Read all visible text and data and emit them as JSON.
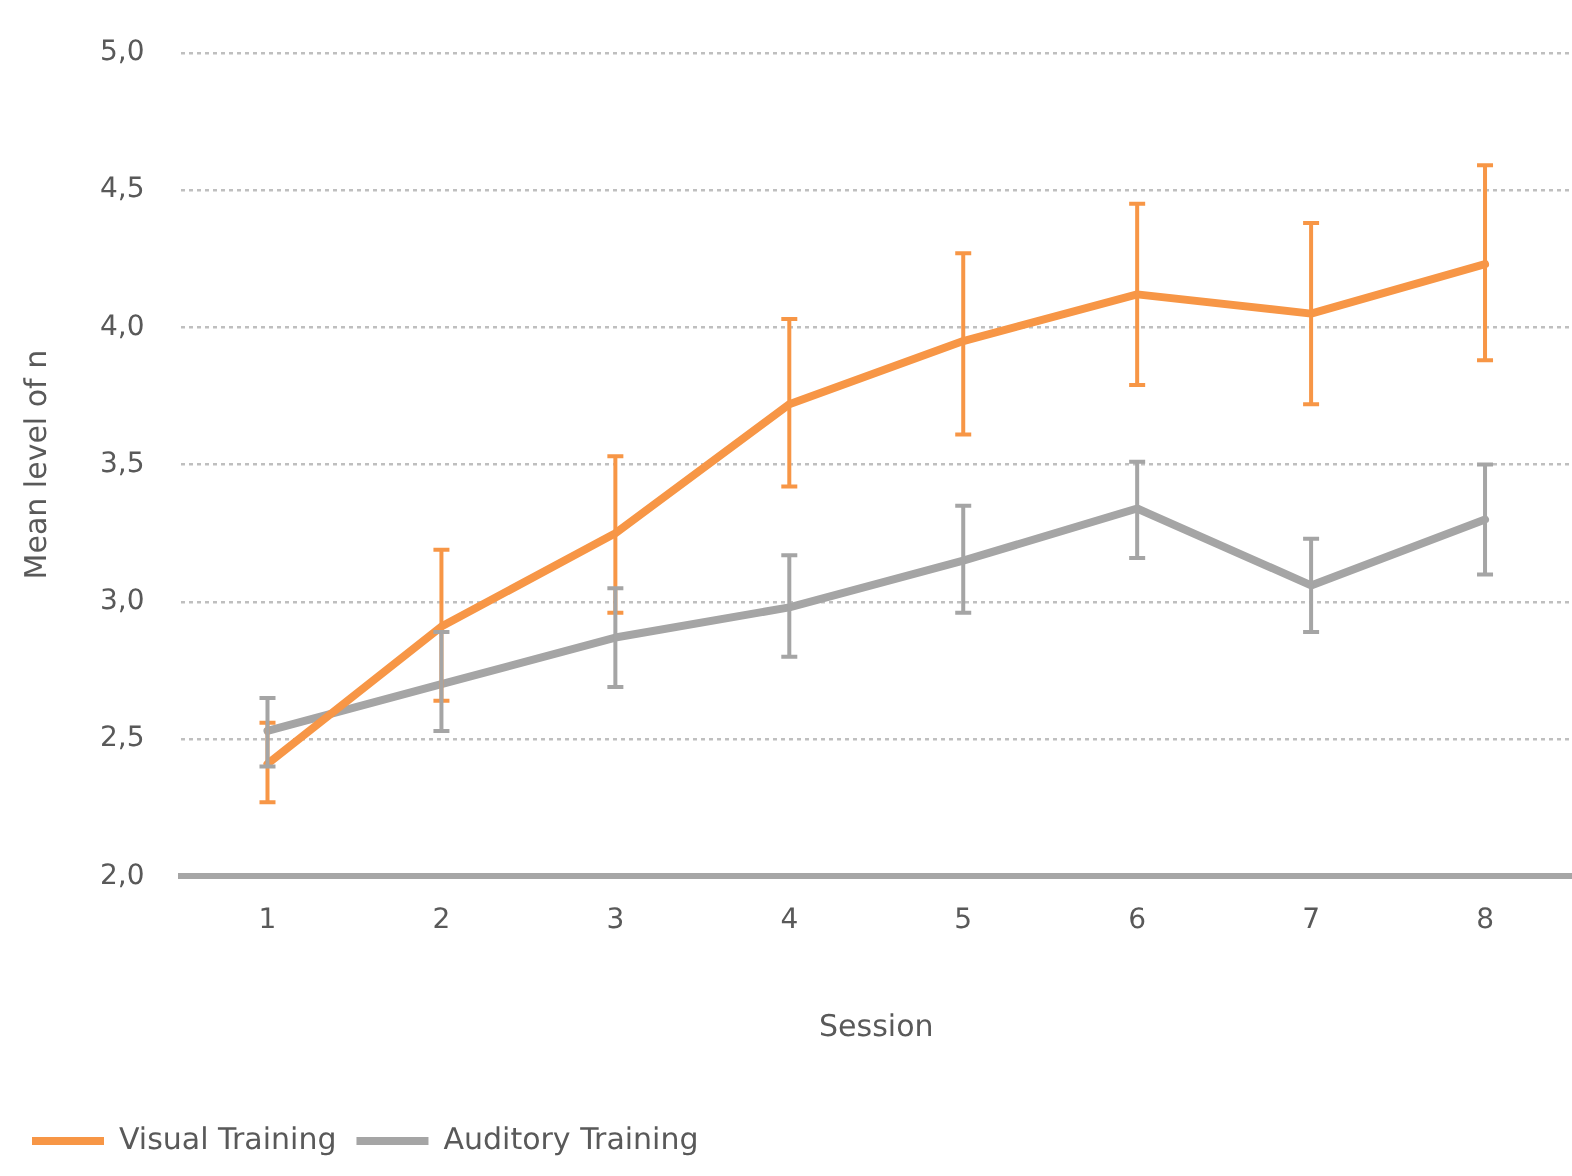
{
  "chart_data": {
    "type": "line",
    "xlabel": "Session",
    "ylabel": "Mean level of n",
    "categories": [
      "1",
      "2",
      "3",
      "4",
      "5",
      "6",
      "7",
      "8"
    ],
    "series": [
      {
        "name": "Visual Training",
        "color": "#f79646",
        "values": [
          2.41,
          2.91,
          3.25,
          3.72,
          3.95,
          4.12,
          4.05,
          4.23
        ],
        "errors": [
          [
            2.27,
            2.56
          ],
          [
            2.64,
            3.19
          ],
          [
            2.96,
            3.53
          ],
          [
            3.42,
            4.03
          ],
          [
            3.61,
            4.27
          ],
          [
            3.79,
            4.45
          ],
          [
            3.72,
            4.38
          ],
          [
            3.88,
            4.59
          ]
        ]
      },
      {
        "name": "Auditory Training",
        "color": "#a5a5a5",
        "values": [
          2.53,
          2.7,
          2.87,
          2.98,
          3.15,
          3.34,
          3.06,
          3.3
        ],
        "errors": [
          [
            2.4,
            2.65
          ],
          [
            2.53,
            2.89
          ],
          [
            2.69,
            3.05
          ],
          [
            2.8,
            3.17
          ],
          [
            2.96,
            3.35
          ],
          [
            3.16,
            3.51
          ],
          [
            2.89,
            3.23
          ],
          [
            3.1,
            3.5
          ]
        ]
      }
    ],
    "ylim": [
      2.0,
      5.0
    ],
    "yticks": [
      {
        "value": 2.0,
        "label": "2,0"
      },
      {
        "value": 2.5,
        "label": "2,5"
      },
      {
        "value": 3.0,
        "label": "3,0"
      },
      {
        "value": 3.5,
        "label": "3,5"
      },
      {
        "value": 4.0,
        "label": "4,0"
      },
      {
        "value": 4.5,
        "label": "4,5"
      },
      {
        "value": 5.0,
        "label": "5,0"
      }
    ],
    "grid": "y",
    "legend": "bottom left",
    "marker": "none",
    "line_style": "solid"
  }
}
